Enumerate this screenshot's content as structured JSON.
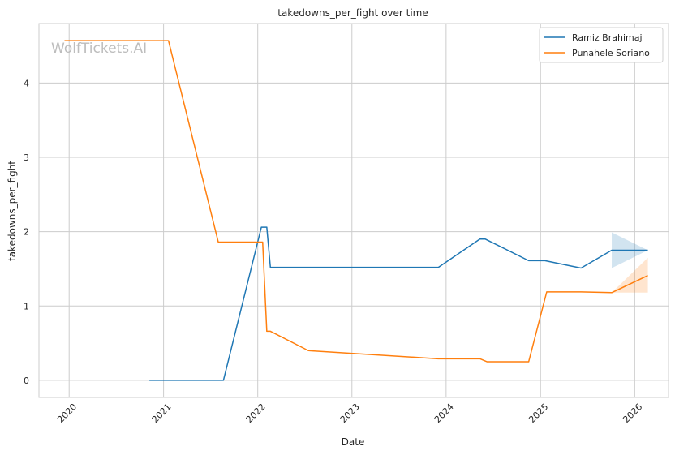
{
  "chart_data": {
    "type": "line",
    "title": "takedowns_per_fight over time",
    "xlabel": "Date",
    "ylabel": "takedowns_per_fight",
    "watermark": "WolfTickets.AI",
    "x_ticks": [
      "2020",
      "2021",
      "2022",
      "2023",
      "2024",
      "2025",
      "2026"
    ],
    "y_ticks": [
      "0",
      "1",
      "2",
      "3",
      "4"
    ],
    "xlim": [
      "2019-09-06",
      "2026-05-12"
    ],
    "ylim": [
      -0.23,
      4.8
    ],
    "grid": true,
    "legend_position": "top-right",
    "series": [
      {
        "name": "Ramiz Brahimaj",
        "color": "#1f77b4",
        "points": [
          [
            "2020-11-07",
            0.0
          ],
          [
            "2021-08-21",
            0.0
          ],
          [
            "2022-01-15",
            2.06
          ],
          [
            "2022-02-05",
            2.06
          ],
          [
            "2022-02-19",
            1.52
          ],
          [
            "2023-12-02",
            1.52
          ],
          [
            "2024-05-11",
            1.9
          ],
          [
            "2024-06-01",
            1.9
          ],
          [
            "2024-11-16",
            1.61
          ],
          [
            "2025-01-18",
            1.61
          ],
          [
            "2025-06-07",
            1.51
          ],
          [
            "2025-10-04",
            1.75
          ],
          [
            "2026-02-21",
            1.75
          ]
        ],
        "band": {
          "x": [
            "2025-10-04",
            "2026-02-21"
          ],
          "upper": [
            1.99,
            1.75
          ],
          "lower": [
            1.51,
            1.75
          ]
        }
      },
      {
        "name": "Punahele Soriano",
        "color": "#ff7f0e",
        "points": [
          [
            "2019-12-14",
            4.57
          ],
          [
            "2021-01-20",
            4.57
          ],
          [
            "2021-08-01",
            1.86
          ],
          [
            "2022-01-20",
            1.86
          ],
          [
            "2022-02-05",
            0.66
          ],
          [
            "2022-02-19",
            0.66
          ],
          [
            "2022-07-16",
            0.4
          ],
          [
            "2023-12-02",
            0.29
          ],
          [
            "2024-05-11",
            0.29
          ],
          [
            "2024-06-08",
            0.25
          ],
          [
            "2024-11-16",
            0.25
          ],
          [
            "2025-01-25",
            1.19
          ],
          [
            "2025-06-07",
            1.19
          ],
          [
            "2025-10-04",
            1.18
          ],
          [
            "2026-02-21",
            1.41
          ]
        ],
        "band": {
          "x": [
            "2025-10-04",
            "2026-02-21"
          ],
          "upper": [
            1.18,
            1.65
          ],
          "lower": [
            1.18,
            1.18
          ]
        }
      }
    ]
  }
}
